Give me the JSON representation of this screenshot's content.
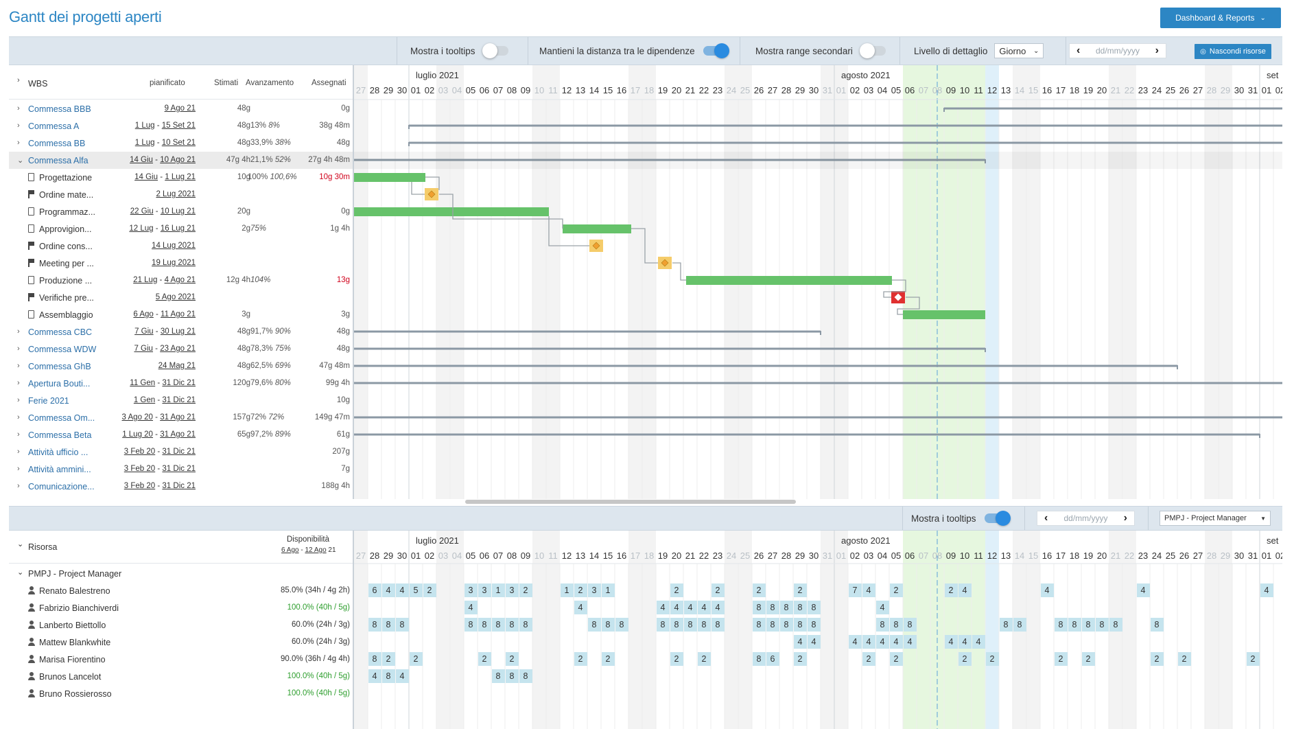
{
  "header": {
    "title": "Gantt dei progetti aperti",
    "dashboard_label": "Dashboard & Reports"
  },
  "toolbar": {
    "tooltips_label": "Mostra i tooltips",
    "tooltips_on": false,
    "distance_label": "Mantieni la distanza tra le dipendenze",
    "distance_on": true,
    "secondary_label": "Mostra range secondari",
    "secondary_on": false,
    "detail_label": "Livello di dettaglio",
    "detail_value": "Giorno",
    "date_placeholder": "dd/mm/yyyy",
    "hide_resources_label": "Nascondi risorse"
  },
  "wbs": {
    "headers": {
      "name": "WBS",
      "planned": "pianificato",
      "estimated": "Stimati",
      "progress": "Avanzamento",
      "assigned": "Assegnati"
    },
    "rows": [
      {
        "name": "Commessa BBB",
        "level": 0,
        "exp": ">",
        "start": "",
        "end": "9 Ago 21",
        "est": "48g",
        "prog": "",
        "progi": "",
        "asg": "0g",
        "red": false
      },
      {
        "name": "Commessa A",
        "level": 0,
        "exp": ">",
        "start": "1 Lug",
        "end": "15 Set 21",
        "est": "48g",
        "prog": "13%",
        "progi": "8%",
        "asg": "38g 48m",
        "red": false
      },
      {
        "name": "Commessa BB",
        "level": 0,
        "exp": ">",
        "start": "1 Lug",
        "end": "10 Set 21",
        "est": "48g",
        "prog": "33,9%",
        "progi": "38%",
        "asg": "48g",
        "red": false
      },
      {
        "name": "Commessa Alfa",
        "level": 0,
        "exp": "v",
        "start": "14 Giu",
        "end": "10 Ago 21",
        "est": "47g 4h",
        "prog": "21,1%",
        "progi": "52%",
        "asg": "27g 4h 48m",
        "red": false
      },
      {
        "name": "Progettazione",
        "level": 1,
        "icon": "task",
        "start": "14 Giu",
        "end": "1 Lug 21",
        "est": "10g",
        "prog": "100%",
        "progi": "100,6%",
        "asg": "10g 30m",
        "red": true
      },
      {
        "name": "Ordine mate...",
        "level": 1,
        "icon": "flag",
        "start": "",
        "end": "2 Lug 2021",
        "est": "",
        "prog": "",
        "progi": "",
        "asg": "",
        "red": false
      },
      {
        "name": "Programmaz...",
        "level": 1,
        "icon": "task",
        "start": "22 Giu",
        "end": "10 Lug 21",
        "est": "20g",
        "prog": "",
        "progi": "",
        "asg": "0g",
        "red": false
      },
      {
        "name": "Approvigion...",
        "level": 1,
        "icon": "task",
        "start": "12 Lug",
        "end": "16 Lug 21",
        "est": "2g",
        "prog": "",
        "progi": "75%",
        "asg": "1g 4h",
        "red": false
      },
      {
        "name": "Ordine cons...",
        "level": 1,
        "icon": "flag",
        "start": "",
        "end": "14 Lug 2021",
        "est": "",
        "prog": "",
        "progi": "",
        "asg": "",
        "red": false
      },
      {
        "name": "Meeting per ...",
        "level": 1,
        "icon": "flag",
        "start": "",
        "end": "19 Lug 2021",
        "est": "",
        "prog": "",
        "progi": "",
        "asg": "",
        "red": false
      },
      {
        "name": "Produzione ...",
        "level": 1,
        "icon": "task",
        "start": "21 Lug",
        "end": "4 Ago 21",
        "est": "12g 4h",
        "prog": "",
        "progi": "104%",
        "asg": "13g",
        "red": true
      },
      {
        "name": "Verifiche pre...",
        "level": 1,
        "icon": "flag",
        "start": "",
        "end": "5 Ago 2021",
        "est": "",
        "prog": "",
        "progi": "",
        "asg": "",
        "red": false
      },
      {
        "name": "Assemblaggio",
        "level": 1,
        "icon": "task",
        "start": "6 Ago",
        "end": "11 Ago 21",
        "est": "3g",
        "prog": "",
        "progi": "",
        "asg": "3g",
        "red": false
      },
      {
        "name": "Commessa CBC",
        "level": 0,
        "exp": ">",
        "start": "7 Giu",
        "end": "30 Lug 21",
        "est": "48g",
        "prog": "91,7%",
        "progi": "90%",
        "asg": "48g",
        "red": false
      },
      {
        "name": "Commessa WDW",
        "level": 0,
        "exp": ">",
        "start": "7 Giu",
        "end": "23 Ago 21",
        "est": "48g",
        "prog": "78,3%",
        "progi": "75%",
        "asg": "48g",
        "red": false
      },
      {
        "name": "Commessa GhB",
        "level": 0,
        "exp": ">",
        "start": "",
        "end": "24 Mag 21",
        "est": "48g",
        "prog": "62,5%",
        "progi": "69%",
        "asg": "47g 48m",
        "red": false
      },
      {
        "name": "Apertura Bouti...",
        "level": 0,
        "exp": ">",
        "start": "11 Gen",
        "end": "31 Dic 21",
        "est": "120g",
        "prog": "79,6%",
        "progi": "80%",
        "asg": "99g 4h",
        "red": false
      },
      {
        "name": "Ferie 2021",
        "level": 0,
        "exp": ">",
        "start": "1 Gen",
        "end": "31 Dic 21",
        "est": "",
        "prog": "",
        "progi": "",
        "asg": "10g",
        "red": false
      },
      {
        "name": "Commessa Om...",
        "level": 0,
        "exp": ">",
        "start": "3 Ago 20",
        "end": "31 Ago 21",
        "est": "157g",
        "prog": "72%",
        "progi": "72%",
        "asg": "149g 47m",
        "red": false
      },
      {
        "name": "Commessa Beta",
        "level": 0,
        "exp": ">",
        "start": "1 Lug 20",
        "end": "31 Ago 21",
        "est": "65g",
        "prog": "97,2%",
        "progi": "89%",
        "asg": "61g",
        "red": false
      },
      {
        "name": "Attività ufficio ...",
        "level": 0,
        "exp": ">",
        "start": "3 Feb 20",
        "end": "31 Dic 21",
        "est": "",
        "prog": "",
        "progi": "",
        "asg": "207g",
        "red": false
      },
      {
        "name": "Attività ammini...",
        "level": 0,
        "exp": ">",
        "start": "3 Feb 20",
        "end": "31 Dic 21",
        "est": "",
        "prog": "",
        "progi": "",
        "asg": "7g",
        "red": false
      },
      {
        "name": "Comunicazione...",
        "level": 0,
        "exp": ">",
        "start": "3 Feb 20",
        "end": "31 Dic 21",
        "est": "",
        "prog": "",
        "progi": "",
        "asg": "188g 4h",
        "red": false
      }
    ]
  },
  "timeline": {
    "month_july": "luglio 2021",
    "month_aug": "agosto 2021",
    "month_sep": "set",
    "days": [
      "27",
      "28",
      "29",
      "30",
      "01",
      "02",
      "03",
      "04",
      "05",
      "06",
      "07",
      "08",
      "09",
      "10",
      "11",
      "12",
      "13",
      "14",
      "15",
      "16",
      "17",
      "18",
      "19",
      "20",
      "21",
      "22",
      "23",
      "24",
      "25",
      "26",
      "27",
      "28",
      "29",
      "30",
      "31",
      "01",
      "02",
      "03",
      "04",
      "05",
      "06",
      "07",
      "08",
      "09",
      "10",
      "11",
      "12",
      "13",
      "14",
      "15",
      "16",
      "17",
      "18",
      "19",
      "20",
      "21",
      "22",
      "23",
      "24",
      "25",
      "26",
      "27",
      "28",
      "29",
      "30",
      "31",
      "01",
      "02"
    ],
    "weekend_idx": [
      0,
      6,
      7,
      13,
      14,
      20,
      21,
      27,
      28,
      34,
      35,
      41,
      42,
      48,
      49,
      55,
      56,
      62,
      63
    ]
  },
  "resources_toolbar": {
    "tooltips_label": "Mostra i tooltips",
    "tooltips_on": true,
    "date_placeholder": "dd/mm/yyyy",
    "filter_value": "PMPJ - Project Manager"
  },
  "resources": {
    "header_name": "Risorsa",
    "header_avail": "Disponibilità",
    "avail_start": "6 Ago",
    "avail_end": "12 Ago",
    "avail_year": "21",
    "group": "PMPJ - Project Manager",
    "people": [
      {
        "name": "Renato Balestreno",
        "avail": "85.0% (34h / 4g 2h)",
        "green": false,
        "cells": [
          [
            1,
            "6"
          ],
          [
            2,
            "4"
          ],
          [
            3,
            "4"
          ],
          [
            4,
            "5"
          ],
          [
            5,
            "2"
          ],
          [
            8,
            "3"
          ],
          [
            9,
            "3"
          ],
          [
            10,
            "1"
          ],
          [
            11,
            "3"
          ],
          [
            12,
            "2"
          ],
          [
            15,
            "1"
          ],
          [
            16,
            "2"
          ],
          [
            17,
            "3"
          ],
          [
            18,
            "1"
          ],
          [
            23,
            "2"
          ],
          [
            26,
            "2"
          ],
          [
            29,
            "2"
          ],
          [
            32,
            "2"
          ],
          [
            36,
            "7"
          ],
          [
            37,
            "4"
          ],
          [
            39,
            "2"
          ],
          [
            43,
            "2"
          ],
          [
            44,
            "4"
          ],
          [
            50,
            "4"
          ],
          [
            57,
            "4"
          ],
          [
            66,
            "4"
          ]
        ]
      },
      {
        "name": "Fabrizio Bianchiverdi",
        "avail": "100.0% (40h / 5g)",
        "green": true,
        "cells": [
          [
            8,
            "4"
          ],
          [
            16,
            "4"
          ],
          [
            22,
            "4"
          ],
          [
            23,
            "4"
          ],
          [
            24,
            "4"
          ],
          [
            25,
            "4"
          ],
          [
            26,
            "4"
          ],
          [
            29,
            "8"
          ],
          [
            30,
            "8"
          ],
          [
            31,
            "8"
          ],
          [
            32,
            "8"
          ],
          [
            33,
            "8"
          ],
          [
            38,
            "4"
          ]
        ]
      },
      {
        "name": "Lanberto Biettollo",
        "avail": "60.0% (24h / 3g)",
        "green": false,
        "cells": [
          [
            1,
            "8"
          ],
          [
            2,
            "8"
          ],
          [
            3,
            "8"
          ],
          [
            8,
            "8"
          ],
          [
            9,
            "8"
          ],
          [
            10,
            "8"
          ],
          [
            11,
            "8"
          ],
          [
            12,
            "8"
          ],
          [
            17,
            "8"
          ],
          [
            18,
            "8"
          ],
          [
            19,
            "8"
          ],
          [
            22,
            "8"
          ],
          [
            23,
            "8"
          ],
          [
            24,
            "8"
          ],
          [
            25,
            "8"
          ],
          [
            26,
            "8"
          ],
          [
            29,
            "8"
          ],
          [
            30,
            "8"
          ],
          [
            31,
            "8"
          ],
          [
            32,
            "8"
          ],
          [
            33,
            "8"
          ],
          [
            38,
            "8"
          ],
          [
            39,
            "8"
          ],
          [
            40,
            "8"
          ],
          [
            47,
            "8"
          ],
          [
            48,
            "8"
          ],
          [
            51,
            "8"
          ],
          [
            52,
            "8"
          ],
          [
            53,
            "8"
          ],
          [
            54,
            "8"
          ],
          [
            55,
            "8"
          ],
          [
            58,
            "8"
          ]
        ]
      },
      {
        "name": "Mattew Blankwhite",
        "avail": "60.0% (24h / 3g)",
        "green": false,
        "cells": [
          [
            32,
            "4"
          ],
          [
            33,
            "4"
          ],
          [
            36,
            "4"
          ],
          [
            37,
            "4"
          ],
          [
            38,
            "4"
          ],
          [
            39,
            "4"
          ],
          [
            40,
            "4"
          ],
          [
            43,
            "4"
          ],
          [
            44,
            "4"
          ],
          [
            45,
            "4"
          ]
        ]
      },
      {
        "name": "Marisa Fiorentino",
        "avail": "90.0% (36h / 4g 4h)",
        "green": false,
        "cells": [
          [
            1,
            "8"
          ],
          [
            2,
            "2"
          ],
          [
            4,
            "2"
          ],
          [
            9,
            "2"
          ],
          [
            11,
            "2"
          ],
          [
            16,
            "2"
          ],
          [
            18,
            "2"
          ],
          [
            23,
            "2"
          ],
          [
            25,
            "2"
          ],
          [
            29,
            "8"
          ],
          [
            30,
            "6"
          ],
          [
            32,
            "2"
          ],
          [
            37,
            "2"
          ],
          [
            39,
            "2"
          ],
          [
            44,
            "2"
          ],
          [
            46,
            "2"
          ],
          [
            51,
            "2"
          ],
          [
            53,
            "2"
          ],
          [
            58,
            "2"
          ],
          [
            60,
            "2"
          ],
          [
            65,
            "2"
          ]
        ]
      },
      {
        "name": "Brunos Lancelot",
        "avail": "100.0% (40h / 5g)",
        "green": true,
        "cells": [
          [
            1,
            "4"
          ],
          [
            2,
            "8"
          ],
          [
            3,
            "4"
          ],
          [
            10,
            "8"
          ],
          [
            11,
            "8"
          ],
          [
            12,
            "8"
          ]
        ]
      },
      {
        "name": "Bruno Rossierosso",
        "avail": "100.0% (40h / 5g)",
        "green": true,
        "cells": []
      }
    ]
  }
}
